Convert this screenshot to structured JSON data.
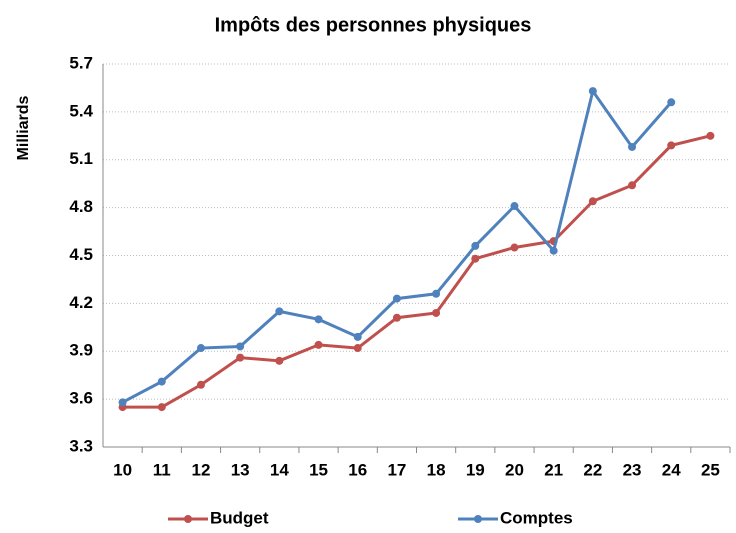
{
  "chart_data": {
    "type": "line",
    "title": "Impôts des personnes physiques",
    "y_label": "Milliards",
    "categories": [
      "10",
      "11",
      "12",
      "13",
      "14",
      "15",
      "16",
      "17",
      "18",
      "19",
      "20",
      "21",
      "22",
      "23",
      "24",
      "25"
    ],
    "series": [
      {
        "name": "Budget",
        "color": "#c0504d",
        "values": [
          3.55,
          3.55,
          3.69,
          3.86,
          3.84,
          3.94,
          3.92,
          4.11,
          4.14,
          4.48,
          4.55,
          4.59,
          4.84,
          4.94,
          5.19,
          5.25
        ]
      },
      {
        "name": "Comptes",
        "color": "#4f81bd",
        "values": [
          3.58,
          3.71,
          3.92,
          3.93,
          4.15,
          4.1,
          3.99,
          4.23,
          4.26,
          4.56,
          4.81,
          4.53,
          5.53,
          5.18,
          5.46,
          null
        ]
      }
    ],
    "ylim": [
      3.3,
      5.7
    ],
    "yticks": [
      3.3,
      3.6,
      3.9,
      4.2,
      4.5,
      4.8,
      5.1,
      5.4,
      5.7
    ],
    "grid": true,
    "legend": "bottom"
  }
}
